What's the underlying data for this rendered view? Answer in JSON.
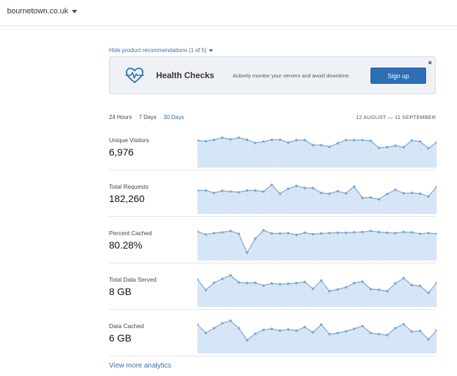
{
  "header": {
    "site": "bournetown.co.uk"
  },
  "recommendation": {
    "toggle_label": "Hide product recommendations (1 of 5)",
    "title": "Health Checks",
    "description": "Actively monitor your servers and avoid downtime.",
    "button": "Sign up",
    "close": "×"
  },
  "range": {
    "tabs": [
      "24 Hours",
      "7 Days",
      "30 Days"
    ],
    "active": "30 Days",
    "dates": "12 AUGUST — 11 SEPTEMBER"
  },
  "colors": {
    "accent": "#2e6eb5",
    "line": "#7ea6d0",
    "fill": "#d6e6f6"
  },
  "chart_data": [
    {
      "type": "area",
      "title": "Unique Visitors",
      "summary": "6,976",
      "ylim": [
        0,
        1
      ],
      "values": [
        0.77,
        0.75,
        0.79,
        0.85,
        0.8,
        0.85,
        0.79,
        0.7,
        0.74,
        0.79,
        0.79,
        0.71,
        0.78,
        0.78,
        0.64,
        0.64,
        0.59,
        0.69,
        0.78,
        0.78,
        0.78,
        0.76,
        0.56,
        0.58,
        0.62,
        0.58,
        0.77,
        0.74,
        0.55,
        0.71
      ]
    },
    {
      "type": "area",
      "title": "Total Requests",
      "summary": "182,260",
      "ylim": [
        0,
        1
      ],
      "values": [
        0.67,
        0.67,
        0.6,
        0.66,
        0.64,
        0.62,
        0.67,
        0.67,
        0.64,
        0.83,
        0.58,
        0.72,
        0.8,
        0.74,
        0.74,
        0.6,
        0.58,
        0.65,
        0.59,
        0.78,
        0.46,
        0.47,
        0.42,
        0.57,
        0.69,
        0.59,
        0.6,
        0.58,
        0.5,
        0.77
      ]
    },
    {
      "type": "area",
      "title": "Percent Cached",
      "summary": "80.28%",
      "ylim": [
        0,
        1
      ],
      "values": [
        0.82,
        0.74,
        0.78,
        0.8,
        0.84,
        0.76,
        0.22,
        0.62,
        0.86,
        0.77,
        0.77,
        0.78,
        0.73,
        0.79,
        0.75,
        0.77,
        0.78,
        0.79,
        0.79,
        0.8,
        0.81,
        0.84,
        0.81,
        0.79,
        0.78,
        0.81,
        0.8,
        0.76,
        0.78,
        0.76
      ]
    },
    {
      "type": "area",
      "title": "Total Data Served",
      "summary": "8 GB",
      "ylim": [
        0,
        1
      ],
      "values": [
        0.78,
        0.48,
        0.69,
        0.8,
        0.9,
        0.7,
        0.68,
        0.69,
        0.61,
        0.67,
        0.65,
        0.66,
        0.68,
        0.71,
        0.52,
        0.75,
        0.45,
        0.5,
        0.56,
        0.68,
        0.72,
        0.51,
        0.49,
        0.45,
        0.67,
        0.82,
        0.62,
        0.6,
        0.4,
        0.68
      ]
    },
    {
      "type": "area",
      "title": "Data Cached",
      "summary": "6 GB",
      "ylim": [
        0,
        1
      ],
      "values": [
        0.82,
        0.58,
        0.72,
        0.86,
        0.93,
        0.72,
        0.38,
        0.56,
        0.67,
        0.7,
        0.65,
        0.68,
        0.65,
        0.75,
        0.6,
        0.82,
        0.55,
        0.58,
        0.63,
        0.7,
        0.78,
        0.58,
        0.55,
        0.52,
        0.72,
        0.83,
        0.62,
        0.64,
        0.4,
        0.65
      ]
    }
  ],
  "footer": {
    "more_link": "View more analytics"
  }
}
